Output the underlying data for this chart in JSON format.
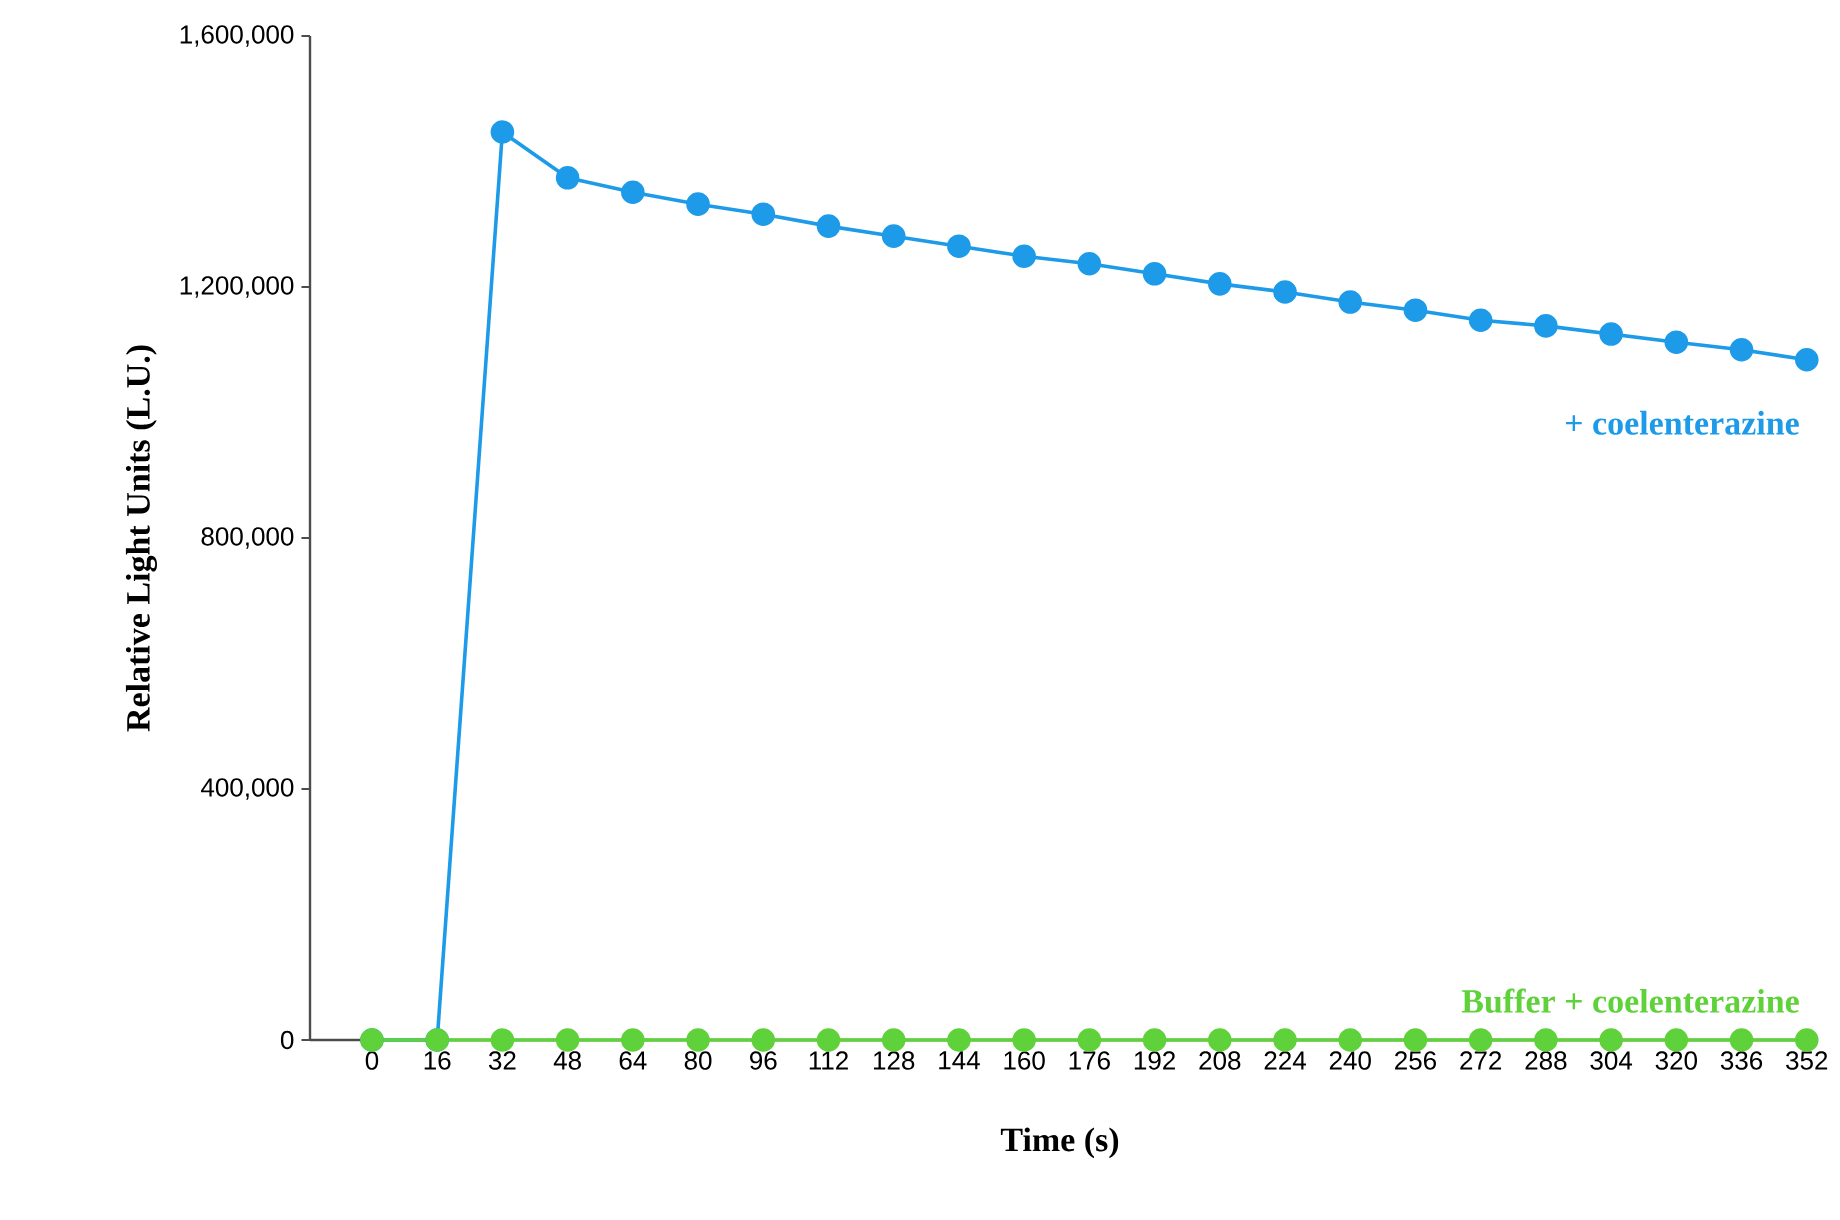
{
  "chart_data": {
    "type": "line",
    "xlabel": "Time (s)",
    "ylabel": "Relative Light Units (L.U.)",
    "categories": [
      "0",
      "16",
      "32",
      "48",
      "64",
      "80",
      "96",
      "112",
      "128",
      "144",
      "160",
      "176",
      "192",
      "208",
      "224",
      "240",
      "256",
      "272",
      "288",
      "304",
      "320",
      "336",
      "352"
    ],
    "series": [
      {
        "name": "+ coelenterazine",
        "color": "#1e9be8",
        "values": [
          0,
          0,
          1447000,
          1374000,
          1351000,
          1332000,
          1316000,
          1297000,
          1281000,
          1265000,
          1249000,
          1237000,
          1221000,
          1205000,
          1192000,
          1176000,
          1163000,
          1147000,
          1138000,
          1125000,
          1112000,
          1100000,
          1084000
        ]
      },
      {
        "name": "Buffer + coelenterazine",
        "color": "#5fd13a",
        "values": [
          0,
          0,
          0,
          0,
          0,
          0,
          0,
          0,
          0,
          0,
          0,
          0,
          0,
          0,
          0,
          0,
          0,
          0,
          0,
          0,
          0,
          0,
          0
        ]
      }
    ],
    "ylim": [
      0,
      1600000
    ],
    "yticks": [
      {
        "value": 0,
        "label": "0"
      },
      {
        "value": 400000,
        "label": "400,000"
      },
      {
        "value": 800000,
        "label": "800,000"
      },
      {
        "value": 1200000,
        "label": "1,200,000"
      },
      {
        "value": 1600000,
        "label": "1,600,000"
      }
    ],
    "marker": "circle",
    "line_style": "solid"
  }
}
